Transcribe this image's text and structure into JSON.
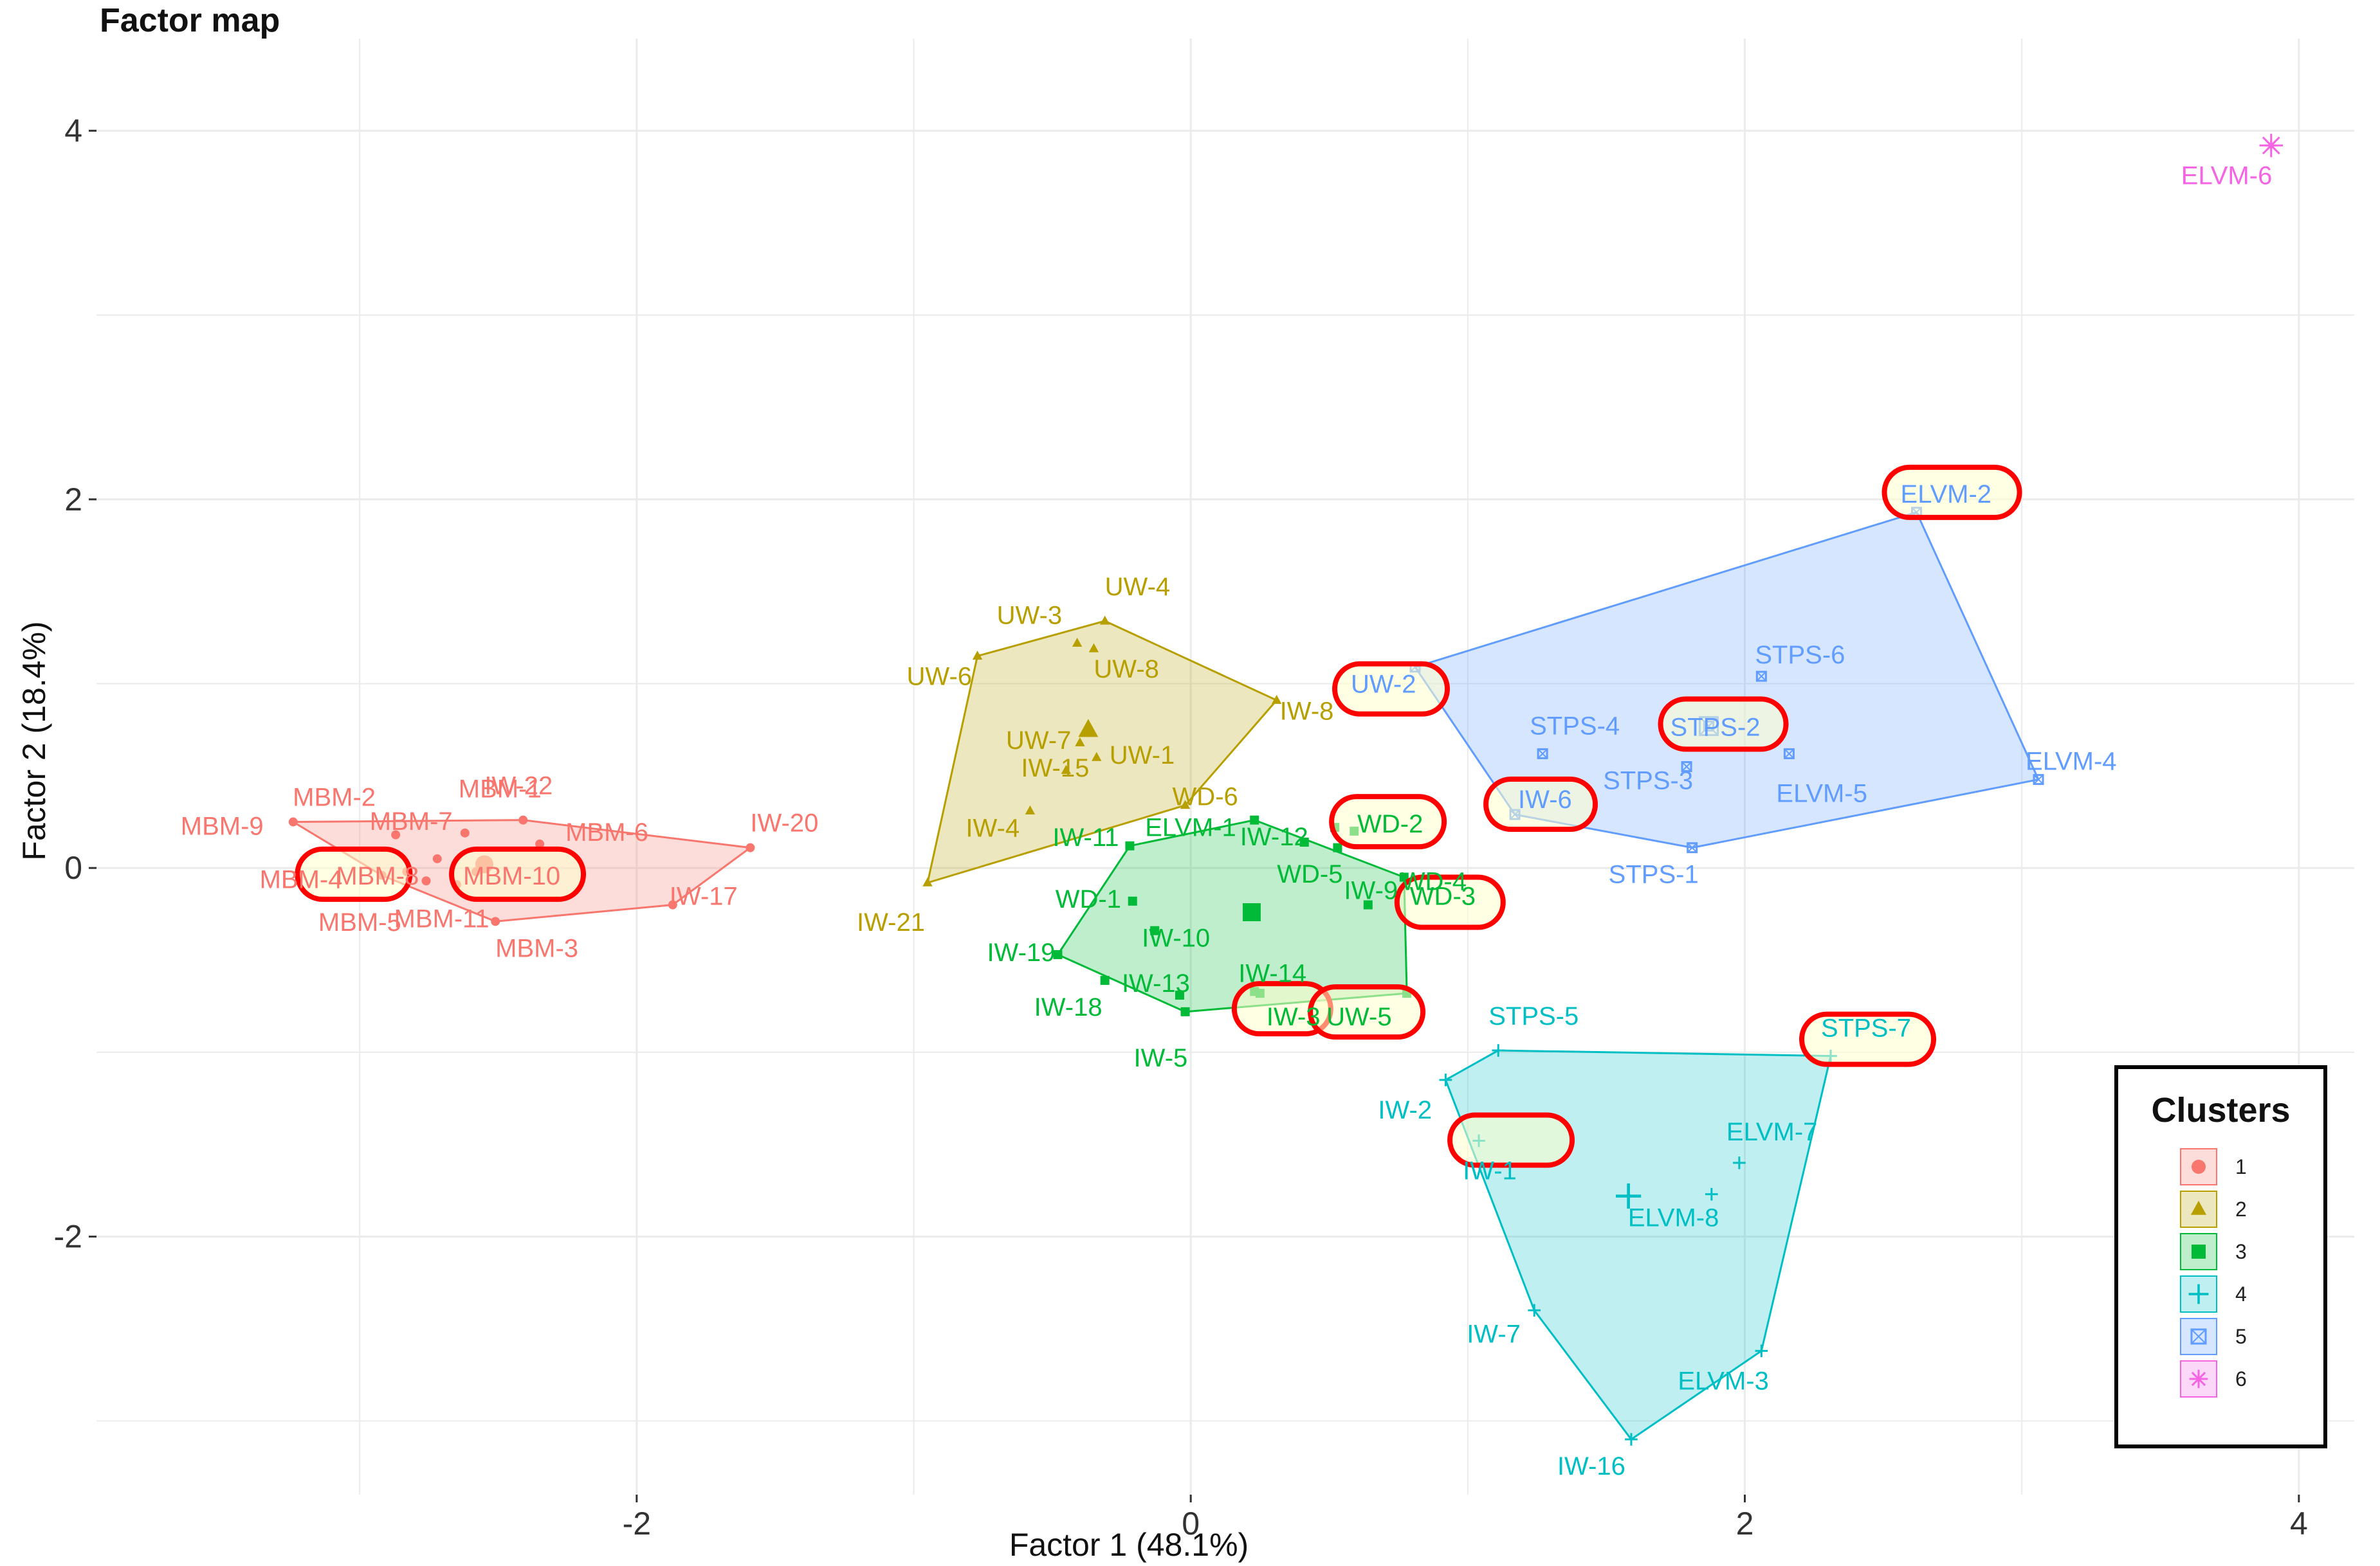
{
  "chart_data": {
    "type": "scatter",
    "title": "Factor map",
    "xlabel": "Factor 1 (48.1%)",
    "ylabel": "Factor 2 (18.4%)",
    "xlim": [
      -3.95,
      4.2
    ],
    "ylim": [
      -3.4,
      4.5
    ],
    "x_ticks": [
      -2,
      0,
      2,
      4
    ],
    "y_ticks": [
      -2,
      0,
      2,
      4
    ],
    "x_tick_labels": [
      "-2",
      "0",
      "2",
      "4"
    ],
    "y_tick_labels": [
      "-2",
      "0",
      "2",
      "4"
    ],
    "grid": true,
    "legend": {
      "title": "Clusters",
      "position": "bottom-right"
    },
    "clusters": [
      {
        "name": "1",
        "color": "#F8766D",
        "marker": "circle",
        "hull": [
          [
            -3.24,
            0.25
          ],
          [
            -2.41,
            0.26
          ],
          [
            -1.59,
            0.11
          ],
          [
            -1.87,
            -0.2
          ],
          [
            -2.51,
            -0.29
          ],
          [
            -2.92,
            -0.04
          ]
        ],
        "centroid": [
          -2.55,
          0.02
        ],
        "points": [
          {
            "label": "MBM-1",
            "x": -2.62,
            "y": 0.19
          },
          {
            "label": "MBM-2",
            "x": -2.87,
            "y": 0.18
          },
          {
            "label": "MBM-3",
            "x": -2.51,
            "y": -0.29
          },
          {
            "label": "MBM-4",
            "x": -2.92,
            "y": -0.04
          },
          {
            "label": "MBM-5",
            "x": -2.65,
            "y": -0.09
          },
          {
            "label": "MBM-6",
            "x": -2.35,
            "y": 0.13
          },
          {
            "label": "MBM-7",
            "x": -2.72,
            "y": 0.05
          },
          {
            "label": "MBM-8",
            "x": -2.83,
            "y": -0.02
          },
          {
            "label": "MBM-9",
            "x": -3.24,
            "y": 0.25
          },
          {
            "label": "MBM-10",
            "x": -2.58,
            "y": -0.02
          },
          {
            "label": "MBM-11",
            "x": -2.76,
            "y": -0.07
          },
          {
            "label": "IW-17",
            "x": -1.87,
            "y": -0.2
          },
          {
            "label": "IW-20",
            "x": -1.59,
            "y": 0.11
          },
          {
            "label": "IW-22",
            "x": -2.41,
            "y": 0.26
          }
        ]
      },
      {
        "name": "2",
        "color": "#B79F00",
        "marker": "triangle",
        "hull": [
          [
            -0.95,
            -0.08
          ],
          [
            -0.77,
            1.15
          ],
          [
            -0.31,
            1.34
          ],
          [
            0.31,
            0.91
          ],
          [
            -0.02,
            0.34
          ]
        ],
        "centroid": [
          -0.37,
          0.75
        ],
        "points": [
          {
            "label": "UW-1",
            "x": -0.34,
            "y": 0.6
          },
          {
            "label": "UW-3",
            "x": -0.41,
            "y": 1.22
          },
          {
            "label": "UW-4",
            "x": -0.31,
            "y": 1.34
          },
          {
            "label": "UW-6",
            "x": -0.77,
            "y": 1.15
          },
          {
            "label": "UW-7",
            "x": -0.4,
            "y": 0.68
          },
          {
            "label": "UW-8",
            "x": -0.35,
            "y": 1.19
          },
          {
            "label": "IW-4",
            "x": -0.58,
            "y": 0.31
          },
          {
            "label": "IW-8",
            "x": 0.31,
            "y": 0.91
          },
          {
            "label": "IW-15",
            "x": -0.45,
            "y": 0.53
          },
          {
            "label": "IW-21",
            "x": -0.95,
            "y": -0.08
          },
          {
            "label": "WD-6",
            "x": -0.02,
            "y": 0.34
          }
        ]
      },
      {
        "name": "3",
        "color": "#00BA38",
        "marker": "square",
        "hull": [
          [
            -0.48,
            -0.47
          ],
          [
            -0.22,
            0.12
          ],
          [
            0.23,
            0.26
          ],
          [
            0.77,
            -0.05
          ],
          [
            0.78,
            -0.68
          ],
          [
            -0.02,
            -0.78
          ]
        ],
        "centroid": [
          0.22,
          -0.24
        ],
        "points": [
          {
            "label": "ELVM-1",
            "x": 0.23,
            "y": 0.26
          },
          {
            "label": "IW-3",
            "x": 0.25,
            "y": -0.68
          },
          {
            "label": "IW-5",
            "x": -0.02,
            "y": -0.78
          },
          {
            "label": "IW-9",
            "x": 0.53,
            "y": 0.11
          },
          {
            "label": "IW-10",
            "x": -0.13,
            "y": -0.34
          },
          {
            "label": "IW-11",
            "x": -0.22,
            "y": 0.12
          },
          {
            "label": "IW-12",
            "x": 0.41,
            "y": 0.14
          },
          {
            "label": "IW-13",
            "x": -0.04,
            "y": -0.69
          },
          {
            "label": "IW-14",
            "x": 0.23,
            "y": -0.67
          },
          {
            "label": "IW-18",
            "x": -0.31,
            "y": -0.61
          },
          {
            "label": "IW-19",
            "x": -0.48,
            "y": -0.47
          },
          {
            "label": "WD-1",
            "x": -0.21,
            "y": -0.18
          },
          {
            "label": "WD-2",
            "x": 0.52,
            "y": 0.22
          },
          {
            "label": "WD-3",
            "x": 0.64,
            "y": -0.2
          },
          {
            "label": "WD-4",
            "x": 0.77,
            "y": -0.05
          },
          {
            "label": "WD-5",
            "x": 0.59,
            "y": 0.2
          },
          {
            "label": "UW-5",
            "x": 0.78,
            "y": -0.68
          }
        ]
      },
      {
        "name": "4",
        "color": "#00BFC4",
        "marker": "plus",
        "hull": [
          [
            0.92,
            -1.15
          ],
          [
            1.11,
            -0.99
          ],
          [
            2.31,
            -1.02
          ],
          [
            2.06,
            -2.62
          ],
          [
            1.59,
            -3.1
          ],
          [
            1.24,
            -2.4
          ]
        ],
        "centroid": [
          1.58,
          -1.78
        ],
        "points": [
          {
            "label": "ELVM-3",
            "x": 2.06,
            "y": -2.62
          },
          {
            "label": "ELVM-7",
            "x": 1.98,
            "y": -1.6
          },
          {
            "label": "ELVM-8",
            "x": 1.88,
            "y": -1.77
          },
          {
            "label": "IW-1",
            "x": 1.04,
            "y": -1.48
          },
          {
            "label": "IW-2",
            "x": 0.92,
            "y": -1.15
          },
          {
            "label": "IW-7",
            "x": 1.24,
            "y": -2.4
          },
          {
            "label": "IW-16",
            "x": 1.59,
            "y": -3.1
          },
          {
            "label": "STPS-5",
            "x": 1.11,
            "y": -0.99
          },
          {
            "label": "STPS-7",
            "x": 2.31,
            "y": -1.02
          }
        ]
      },
      {
        "name": "5",
        "color": "#619CFF",
        "marker": "square-x",
        "hull": [
          [
            0.81,
            1.09
          ],
          [
            2.62,
            1.93
          ],
          [
            3.06,
            0.48
          ],
          [
            1.81,
            0.11
          ],
          [
            1.17,
            0.29
          ]
        ],
        "centroid": [
          1.87,
          0.77
        ],
        "points": [
          {
            "label": "ELVM-2",
            "x": 2.62,
            "y": 1.93
          },
          {
            "label": "ELVM-4",
            "x": 3.06,
            "y": 0.48
          },
          {
            "label": "ELVM-5",
            "x": 2.16,
            "y": 0.62
          },
          {
            "label": "IW-6",
            "x": 1.17,
            "y": 0.29
          },
          {
            "label": "STPS-1",
            "x": 1.81,
            "y": 0.11
          },
          {
            "label": "STPS-2",
            "x": 1.87,
            "y": 0.77
          },
          {
            "label": "STPS-3",
            "x": 1.79,
            "y": 0.55
          },
          {
            "label": "STPS-4",
            "x": 1.27,
            "y": 0.62
          },
          {
            "label": "STPS-6",
            "x": 2.06,
            "y": 1.04
          },
          {
            "label": "UW-2",
            "x": 0.81,
            "y": 1.09
          }
        ]
      },
      {
        "name": "6",
        "color": "#F564E3",
        "marker": "asterisk",
        "hull": [],
        "centroid": [
          3.9,
          3.92
        ],
        "points": [
          {
            "label": "ELVM-6",
            "x": 3.9,
            "y": 3.92
          }
        ]
      }
    ],
    "highlighted": [
      "MBM-8",
      "MBM-10",
      "UW-2",
      "WD-2",
      "WD-3",
      "IW-3",
      "UW-5",
      "IW-6",
      "STPS-2",
      "ELVM-2",
      "STPS-7",
      "IW-1"
    ],
    "highlight_color": "#FF0000"
  }
}
